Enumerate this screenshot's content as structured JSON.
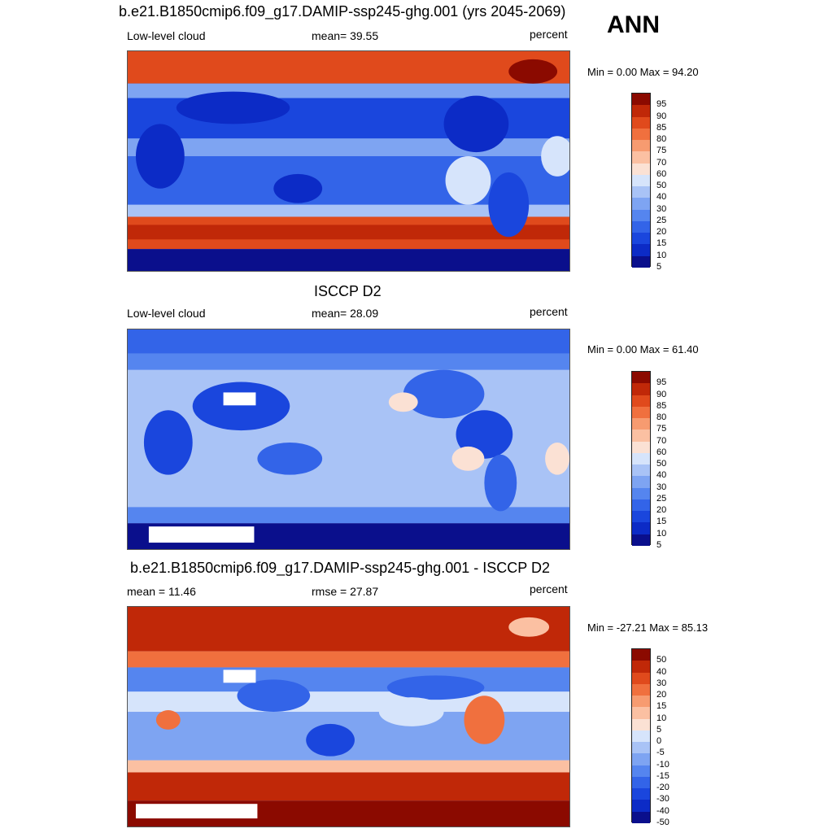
{
  "season": "ANN",
  "panels": [
    {
      "title": "b.e21.B1850cmip6.f09_g17.DAMIP-ssp245-ghg.001 (yrs 2045-2069)",
      "left_label": "Low-level cloud",
      "center_label": "mean=  39.55",
      "units": "percent",
      "minmax": "Min =   0.00 Max =  94.20",
      "colorbar": [
        "95",
        "90",
        "85",
        "80",
        "75",
        "70",
        "60",
        "50",
        "40",
        "30",
        "25",
        "20",
        "15",
        "10",
        "5"
      ]
    },
    {
      "title": "ISCCP D2",
      "left_label": "Low-level cloud",
      "center_label": "mean=  28.09",
      "units": "percent",
      "minmax": "Min =   0.00 Max =  61.40",
      "colorbar": [
        "95",
        "90",
        "85",
        "80",
        "75",
        "70",
        "60",
        "50",
        "40",
        "30",
        "25",
        "20",
        "15",
        "10",
        "5"
      ]
    },
    {
      "title": "b.e21.B1850cmip6.f09_g17.DAMIP-ssp245-ghg.001 - ISCCP D2",
      "left_label": "mean =  11.46",
      "center_label": "rmse =  27.87",
      "units": "percent",
      "minmax": "Min = -27.21 Max =  85.13",
      "colorbar": [
        "50",
        "40",
        "30",
        "20",
        "15",
        "10",
        "5",
        "0",
        "-5",
        "-10",
        "-15",
        "-20",
        "-30",
        "-40",
        "-50"
      ]
    }
  ],
  "colors": {
    "palette": [
      "#0a0f8c",
      "#0c2bc6",
      "#1a46dd",
      "#3364e8",
      "#5585ef",
      "#7ea4f2",
      "#a9c3f6",
      "#d6e4fb",
      "#fbe1d4",
      "#fbc0a2",
      "#f79b70",
      "#f0703e",
      "#e04a1c",
      "#c02808",
      "#8b0a00"
    ]
  }
}
